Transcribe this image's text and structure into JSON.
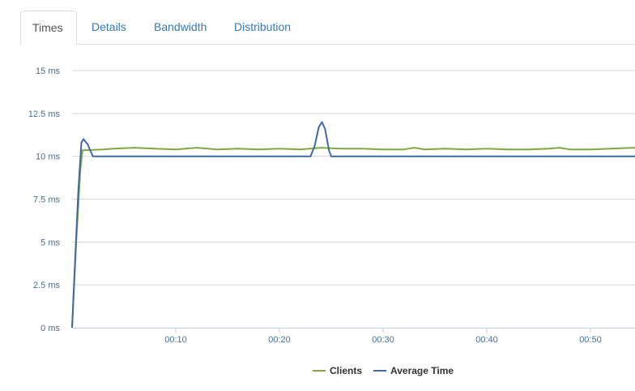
{
  "tabs": [
    {
      "label": "Times",
      "active": true
    },
    {
      "label": "Details",
      "active": false
    },
    {
      "label": "Bandwidth",
      "active": false
    },
    {
      "label": "Distribution",
      "active": false
    }
  ],
  "colors": {
    "clients": "#7ea93f",
    "average_time": "#3f6aa8",
    "grid": "#d8d8d8",
    "axis": "#c0cfe0",
    "tab_link": "#337ab7"
  },
  "chart_data": {
    "type": "line",
    "y_ticks": [
      "0 ms",
      "2.5 ms",
      "5 ms",
      "7.5 ms",
      "10 ms",
      "12.5 ms",
      "15 ms"
    ],
    "ylim": [
      0,
      15
    ],
    "x_ticks": [
      {
        "label": "00:10",
        "value": 10
      },
      {
        "label": "00:20",
        "value": 20
      },
      {
        "label": "00:30",
        "value": 30
      },
      {
        "label": "00:40",
        "value": 40
      },
      {
        "label": "00:50",
        "value": 50
      }
    ],
    "xlim": [
      0,
      54.3
    ],
    "grid": true,
    "legend_position": "bottom",
    "series": [
      {
        "name": "Clients",
        "color_key": "clients",
        "points": [
          [
            0,
            0
          ],
          [
            0.4,
            5.0
          ],
          [
            0.8,
            9.2
          ],
          [
            1.0,
            10.35
          ],
          [
            3,
            10.4
          ],
          [
            4,
            10.45
          ],
          [
            6,
            10.5
          ],
          [
            8,
            10.45
          ],
          [
            10,
            10.4
          ],
          [
            12,
            10.5
          ],
          [
            14,
            10.4
          ],
          [
            16,
            10.45
          ],
          [
            18,
            10.4
          ],
          [
            20,
            10.45
          ],
          [
            22,
            10.4
          ],
          [
            24,
            10.5
          ],
          [
            26,
            10.45
          ],
          [
            28,
            10.45
          ],
          [
            30,
            10.4
          ],
          [
            32,
            10.4
          ],
          [
            33,
            10.5
          ],
          [
            34,
            10.4
          ],
          [
            36,
            10.45
          ],
          [
            38,
            10.4
          ],
          [
            40,
            10.45
          ],
          [
            42,
            10.4
          ],
          [
            44,
            10.4
          ],
          [
            46,
            10.45
          ],
          [
            47,
            10.5
          ],
          [
            48,
            10.4
          ],
          [
            50,
            10.4
          ],
          [
            52,
            10.45
          ],
          [
            54.3,
            10.5
          ]
        ]
      },
      {
        "name": "Average Time",
        "color_key": "average_time",
        "points": [
          [
            0,
            0
          ],
          [
            0.3,
            4.0
          ],
          [
            0.6,
            8.0
          ],
          [
            0.9,
            10.8
          ],
          [
            1.1,
            11.0
          ],
          [
            1.5,
            10.7
          ],
          [
            2.0,
            10.0
          ],
          [
            23.0,
            10.0
          ],
          [
            23.4,
            10.6
          ],
          [
            23.8,
            11.7
          ],
          [
            24.1,
            12.0
          ],
          [
            24.4,
            11.6
          ],
          [
            24.8,
            10.3
          ],
          [
            25.0,
            10.0
          ],
          [
            54.3,
            10.0
          ]
        ]
      }
    ]
  }
}
